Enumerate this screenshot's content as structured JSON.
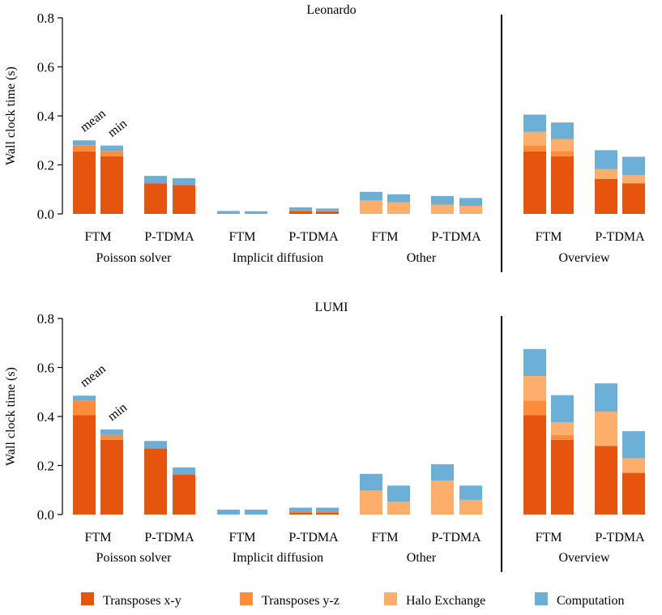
{
  "legend": [
    {
      "name": "Transposes x-y",
      "color": "#e6550d"
    },
    {
      "name": "Transposes y-z",
      "color": "#fd8d3c"
    },
    {
      "name": "Halo Exchange",
      "color": "#fdae6b"
    },
    {
      "name": "Computation",
      "color": "#6baed6"
    }
  ],
  "chart_data": [
    {
      "type": "bar",
      "stacked": true,
      "title": "Leonardo",
      "ylabel": "Wall clock time (s)",
      "ylim": [
        0,
        0.8
      ],
      "yticks": [
        "0.0",
        "0.2",
        "0.4",
        "0.6",
        "0.8"
      ],
      "groups": [
        "Poisson solver",
        "Implicit diffusion",
        "Other",
        "Overview"
      ],
      "annotations": [
        "mean",
        "min"
      ],
      "bars": [
        {
          "group": "Poisson solver",
          "method": "FTM",
          "stat": "mean",
          "values": [
            0.255,
            0.025,
            0.0,
            0.02
          ]
        },
        {
          "group": "Poisson solver",
          "method": "FTM",
          "stat": "min",
          "values": [
            0.235,
            0.022,
            0.0,
            0.022
          ]
        },
        {
          "group": "Poisson solver",
          "method": "P-TDMA",
          "stat": "mean",
          "values": [
            0.125,
            0.0,
            0.0,
            0.03
          ]
        },
        {
          "group": "Poisson solver",
          "method": "P-TDMA",
          "stat": "min",
          "values": [
            0.118,
            0.0,
            0.0,
            0.028
          ]
        },
        {
          "group": "Implicit diffusion",
          "method": "FTM",
          "stat": "mean",
          "values": [
            0.0,
            0.0,
            0.0,
            0.012
          ]
        },
        {
          "group": "Implicit diffusion",
          "method": "FTM",
          "stat": "min",
          "values": [
            0.0,
            0.0,
            0.0,
            0.011
          ]
        },
        {
          "group": "Implicit diffusion",
          "method": "P-TDMA",
          "stat": "mean",
          "values": [
            0.012,
            0.003,
            0.0,
            0.012
          ]
        },
        {
          "group": "Implicit diffusion",
          "method": "P-TDMA",
          "stat": "min",
          "values": [
            0.01,
            0.002,
            0.0,
            0.01
          ]
        },
        {
          "group": "Other",
          "method": "FTM",
          "stat": "mean",
          "values": [
            0.0,
            0.0,
            0.055,
            0.035
          ]
        },
        {
          "group": "Other",
          "method": "FTM",
          "stat": "min",
          "values": [
            0.0,
            0.0,
            0.048,
            0.032
          ]
        },
        {
          "group": "Other",
          "method": "P-TDMA",
          "stat": "mean",
          "values": [
            0.0,
            0.0,
            0.038,
            0.035
          ]
        },
        {
          "group": "Other",
          "method": "P-TDMA",
          "stat": "min",
          "values": [
            0.0,
            0.0,
            0.033,
            0.032
          ]
        },
        {
          "group": "Overview",
          "method": "FTM",
          "stat": "mean",
          "values": [
            0.255,
            0.025,
            0.055,
            0.07
          ]
        },
        {
          "group": "Overview",
          "method": "FTM",
          "stat": "min",
          "values": [
            0.235,
            0.022,
            0.048,
            0.068
          ]
        },
        {
          "group": "Overview",
          "method": "P-TDMA",
          "stat": "mean",
          "values": [
            0.143,
            0.0,
            0.04,
            0.077
          ]
        },
        {
          "group": "Overview",
          "method": "P-TDMA",
          "stat": "min",
          "values": [
            0.125,
            0.0,
            0.033,
            0.075
          ]
        }
      ]
    },
    {
      "type": "bar",
      "stacked": true,
      "title": "LUMI",
      "ylabel": "Wall clock time (s)",
      "ylim": [
        0,
        0.8
      ],
      "yticks": [
        "0.0",
        "0.2",
        "0.4",
        "0.6",
        "0.8"
      ],
      "groups": [
        "Poisson solver",
        "Implicit diffusion",
        "Other",
        "Overview"
      ],
      "annotations": [
        "mean",
        "min"
      ],
      "bars": [
        {
          "group": "Poisson solver",
          "method": "FTM",
          "stat": "mean",
          "values": [
            0.405,
            0.06,
            0.0,
            0.02
          ]
        },
        {
          "group": "Poisson solver",
          "method": "FTM",
          "stat": "min",
          "values": [
            0.305,
            0.02,
            0.0,
            0.022
          ]
        },
        {
          "group": "Poisson solver",
          "method": "P-TDMA",
          "stat": "mean",
          "values": [
            0.27,
            0.0,
            0.0,
            0.03
          ]
        },
        {
          "group": "Poisson solver",
          "method": "P-TDMA",
          "stat": "min",
          "values": [
            0.162,
            0.0,
            0.0,
            0.03
          ]
        },
        {
          "group": "Implicit diffusion",
          "method": "FTM",
          "stat": "mean",
          "values": [
            0.0,
            0.0,
            0.0,
            0.02
          ]
        },
        {
          "group": "Implicit diffusion",
          "method": "FTM",
          "stat": "min",
          "values": [
            0.0,
            0.0,
            0.0,
            0.02
          ]
        },
        {
          "group": "Implicit diffusion",
          "method": "P-TDMA",
          "stat": "mean",
          "values": [
            0.008,
            0.002,
            0.0,
            0.018
          ]
        },
        {
          "group": "Implicit diffusion",
          "method": "P-TDMA",
          "stat": "min",
          "values": [
            0.008,
            0.002,
            0.0,
            0.018
          ]
        },
        {
          "group": "Other",
          "method": "FTM",
          "stat": "mean",
          "values": [
            0.0,
            0.0,
            0.098,
            0.068
          ]
        },
        {
          "group": "Other",
          "method": "FTM",
          "stat": "min",
          "values": [
            0.0,
            0.0,
            0.052,
            0.066
          ]
        },
        {
          "group": "Other",
          "method": "P-TDMA",
          "stat": "mean",
          "values": [
            0.0,
            0.0,
            0.138,
            0.067
          ]
        },
        {
          "group": "Other",
          "method": "P-TDMA",
          "stat": "min",
          "values": [
            0.0,
            0.0,
            0.06,
            0.058
          ]
        },
        {
          "group": "Overview",
          "method": "FTM",
          "stat": "mean",
          "values": [
            0.405,
            0.06,
            0.1,
            0.11
          ]
        },
        {
          "group": "Overview",
          "method": "FTM",
          "stat": "min",
          "values": [
            0.305,
            0.02,
            0.052,
            0.11
          ]
        },
        {
          "group": "Overview",
          "method": "P-TDMA",
          "stat": "mean",
          "values": [
            0.28,
            0.0,
            0.14,
            0.115
          ]
        },
        {
          "group": "Overview",
          "method": "P-TDMA",
          "stat": "min",
          "values": [
            0.17,
            0.0,
            0.06,
            0.11
          ]
        }
      ]
    }
  ]
}
